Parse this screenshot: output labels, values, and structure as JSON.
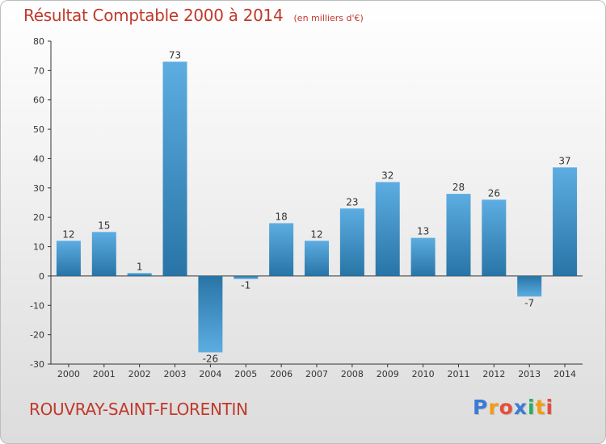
{
  "chart_data": {
    "type": "bar",
    "title": "Résultat Comptable 2000 à 2014",
    "subtitle": "(en milliers d'€)",
    "categories": [
      "2000",
      "2001",
      "2002",
      "2003",
      "2004",
      "2005",
      "2006",
      "2007",
      "2008",
      "2009",
      "2010",
      "2011",
      "2012",
      "2013",
      "2014"
    ],
    "values": [
      12,
      15,
      1,
      73,
      -26,
      -1,
      18,
      12,
      23,
      32,
      13,
      28,
      26,
      -7,
      37
    ],
    "ylim": [
      -30,
      80
    ],
    "yticks": [
      -30,
      -20,
      -10,
      0,
      10,
      20,
      30,
      40,
      50,
      60,
      70,
      80
    ],
    "xlabel": "",
    "ylabel": "",
    "grid": false,
    "colors": {
      "bar_light": "#5dade2",
      "bar_dark": "#2e86c1",
      "axis": "#333333",
      "label": "#333333"
    }
  },
  "footer": {
    "commune": "ROUVRAY-SAINT-FLORENTIN",
    "brand": [
      "P",
      "r",
      "o",
      "x",
      "i",
      "t",
      "i"
    ],
    "brand_colors": [
      "#3a7bd5",
      "#f39c12",
      "#e74c3c",
      "#3a7bd5",
      "#27ae60",
      "#f39c12",
      "#e74c3c"
    ]
  }
}
